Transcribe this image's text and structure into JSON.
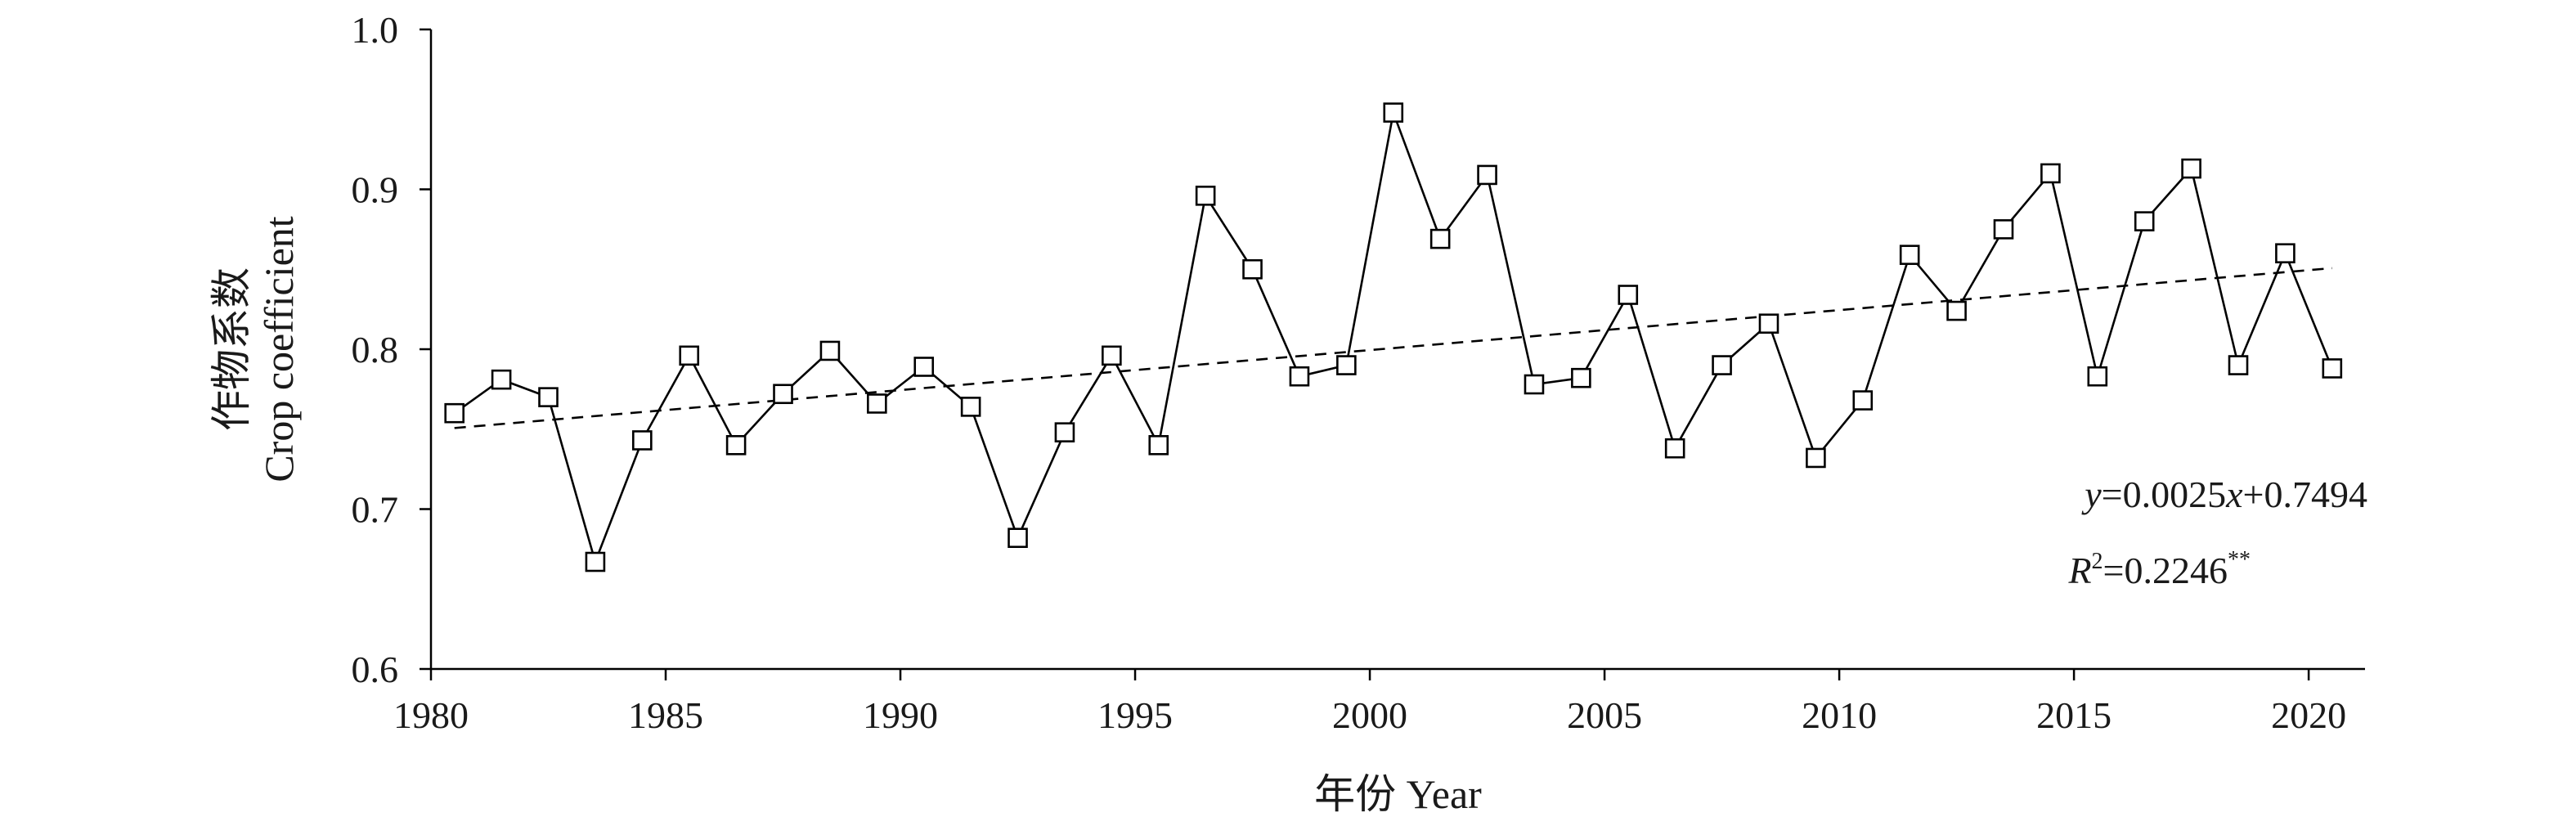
{
  "chart_data": {
    "type": "line",
    "xlabel": "年份 Year",
    "ylabel_line1": "作物系数",
    "ylabel_line2": "Crop coefficient",
    "xlim": [
      1980,
      2021.2
    ],
    "ylim": [
      0.6,
      1.0
    ],
    "x_ticks": [
      1980,
      1985,
      1990,
      1995,
      2000,
      2005,
      2010,
      2015,
      2020
    ],
    "y_ticks": [
      0.6,
      0.7,
      0.8,
      0.9,
      1.0
    ],
    "x_tick_labels": [
      "1980",
      "1985",
      "1990",
      "1995",
      "2000",
      "2005",
      "2010",
      "2015",
      "2020"
    ],
    "y_tick_labels": [
      "0.6",
      "0.7",
      "0.8",
      "0.9",
      "1.0"
    ],
    "grid": false,
    "marker": "open-square",
    "series": [
      {
        "x": [
          1980.5,
          1981.5,
          1982.5,
          1983.5,
          1984.5,
          1985.5,
          1986.5,
          1987.5,
          1988.5,
          1989.5,
          1990.5,
          1991.5,
          1992.5,
          1993.5,
          1994.5,
          1995.5,
          1996.5,
          1997.5,
          1998.5,
          1999.5,
          2000.5,
          2001.5,
          2002.5,
          2003.5,
          2004.5,
          2005.5,
          2006.5,
          2007.5,
          2008.5,
          2009.5,
          2010.5,
          2011.5,
          2012.5,
          2013.5,
          2014.5,
          2015.5,
          2016.5,
          2017.5,
          2018.5,
          2019.5,
          2020.5
        ],
        "values": [
          0.76,
          0.781,
          0.77,
          0.667,
          0.743,
          0.796,
          0.74,
          0.772,
          0.799,
          0.766,
          0.789,
          0.764,
          0.682,
          0.748,
          0.796,
          0.74,
          0.896,
          0.85,
          0.783,
          0.79,
          0.948,
          0.869,
          0.909,
          0.778,
          0.782,
          0.834,
          0.738,
          0.79,
          0.816,
          0.732,
          0.768,
          0.859,
          0.824,
          0.875,
          0.91,
          0.783,
          0.88,
          0.913,
          0.79,
          0.86,
          0.788
        ]
      }
    ],
    "trendline": {
      "x_start": 1980.5,
      "x_end": 2020.5,
      "y_start": 0.7507,
      "y_end": 0.8507,
      "style": "dashed"
    },
    "annotation": {
      "equation_y": "y",
      "equation_rest_1": "=0.0025",
      "equation_x": "x",
      "equation_rest_2": "+0.7494",
      "r2_label": "R",
      "r2_sup": "2",
      "r2_value": "=0.2246",
      "r2_sig": "**"
    }
  }
}
